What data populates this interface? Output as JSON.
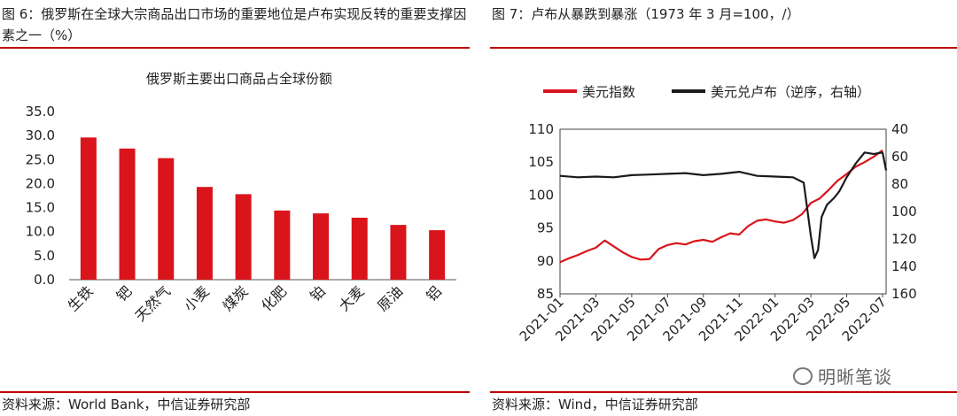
{
  "left": {
    "figure_title": "图 6：俄罗斯在全球大宗商品出口市场的重要地位是卢布实现反转的重要支撑因素之一（%）",
    "source": "资料来源：World Bank，中信证券研究部"
  },
  "right": {
    "figure_title": "图 7：卢布从暴跌到暴涨（1973 年 3 月=100，/）",
    "source": "资料来源：Wind，中信证券研究部"
  },
  "watermark": "明晰笔谈",
  "colors": {
    "accent": "#c00000",
    "bar": "#d9141b",
    "ruble": "#1a1a1a"
  },
  "chart_data": [
    {
      "type": "bar",
      "title": "俄罗斯主要出口商品占全球份额",
      "categories": [
        "生铁",
        "钯",
        "天然气",
        "小麦",
        "煤炭",
        "化肥",
        "铂",
        "大麦",
        "原油",
        "铝"
      ],
      "values": [
        29.6,
        27.3,
        25.3,
        19.3,
        17.8,
        14.4,
        13.8,
        12.9,
        11.4,
        10.3
      ],
      "ylim": [
        0,
        35
      ],
      "yticks": [
        "0.0",
        "5.0",
        "10.0",
        "15.0",
        "20.0",
        "25.0",
        "30.0",
        "35.0"
      ],
      "xlabel": "",
      "ylabel": ""
    },
    {
      "type": "line",
      "legend": [
        "美元指数",
        "美元兑卢布（逆序，右轴）"
      ],
      "x_ticks": [
        "2021-01",
        "2021-03",
        "2021-05",
        "2021-07",
        "2021-09",
        "2021-11",
        "2022-01",
        "2022-03",
        "2022-05",
        "2022-07"
      ],
      "y_left_ticks": [
        "85",
        "90",
        "95",
        "100",
        "105",
        "110"
      ],
      "y_left_range": [
        85,
        110
      ],
      "y_right_ticks": [
        "40",
        "60",
        "80",
        "100",
        "120",
        "140",
        "160"
      ],
      "y_right_range": [
        40,
        160
      ],
      "y_right_inverted": true,
      "series": [
        {
          "name": "美元指数",
          "axis": "left",
          "x": [
            0,
            0.5,
            1,
            1.5,
            2,
            2.5,
            3,
            3.5,
            4,
            4.5,
            5,
            5.5,
            6,
            6.5,
            7,
            7.5,
            8,
            8.5,
            9,
            9.5,
            10,
            10.5,
            11,
            11.5,
            12,
            12.5,
            13,
            13.5,
            14,
            14.5,
            15,
            15.5,
            16,
            16.5,
            17,
            17.5,
            18
          ],
          "values": [
            89.8,
            90.4,
            90.9,
            91.5,
            92.0,
            93.1,
            92.2,
            91.3,
            90.6,
            90.2,
            90.3,
            91.8,
            92.4,
            92.7,
            92.5,
            93.0,
            93.2,
            92.9,
            93.6,
            94.2,
            94.0,
            95.3,
            96.1,
            96.3,
            96.0,
            95.8,
            96.2,
            97.1,
            98.8,
            99.5,
            100.8,
            102.2,
            103.2,
            104.3,
            105.0,
            105.8,
            106.8
          ]
        },
        {
          "name": "美元兑卢布（逆序，右轴）",
          "axis": "right",
          "x": [
            0,
            1,
            2,
            3,
            4,
            5,
            6,
            7,
            8,
            9,
            10,
            11,
            12,
            13,
            13.6,
            13.8,
            14,
            14.2,
            14.4,
            14.6,
            14.9,
            15.3,
            15.6,
            16,
            16.5,
            17,
            17.5,
            18,
            18.2
          ],
          "values": [
            74,
            75,
            74.5,
            75,
            73.5,
            73,
            72.5,
            72,
            73.5,
            72.5,
            71,
            74,
            74.5,
            75,
            79,
            98,
            118,
            134,
            128,
            104,
            95,
            90,
            85,
            75,
            65,
            57,
            58,
            57,
            70
          ]
        }
      ]
    }
  ]
}
